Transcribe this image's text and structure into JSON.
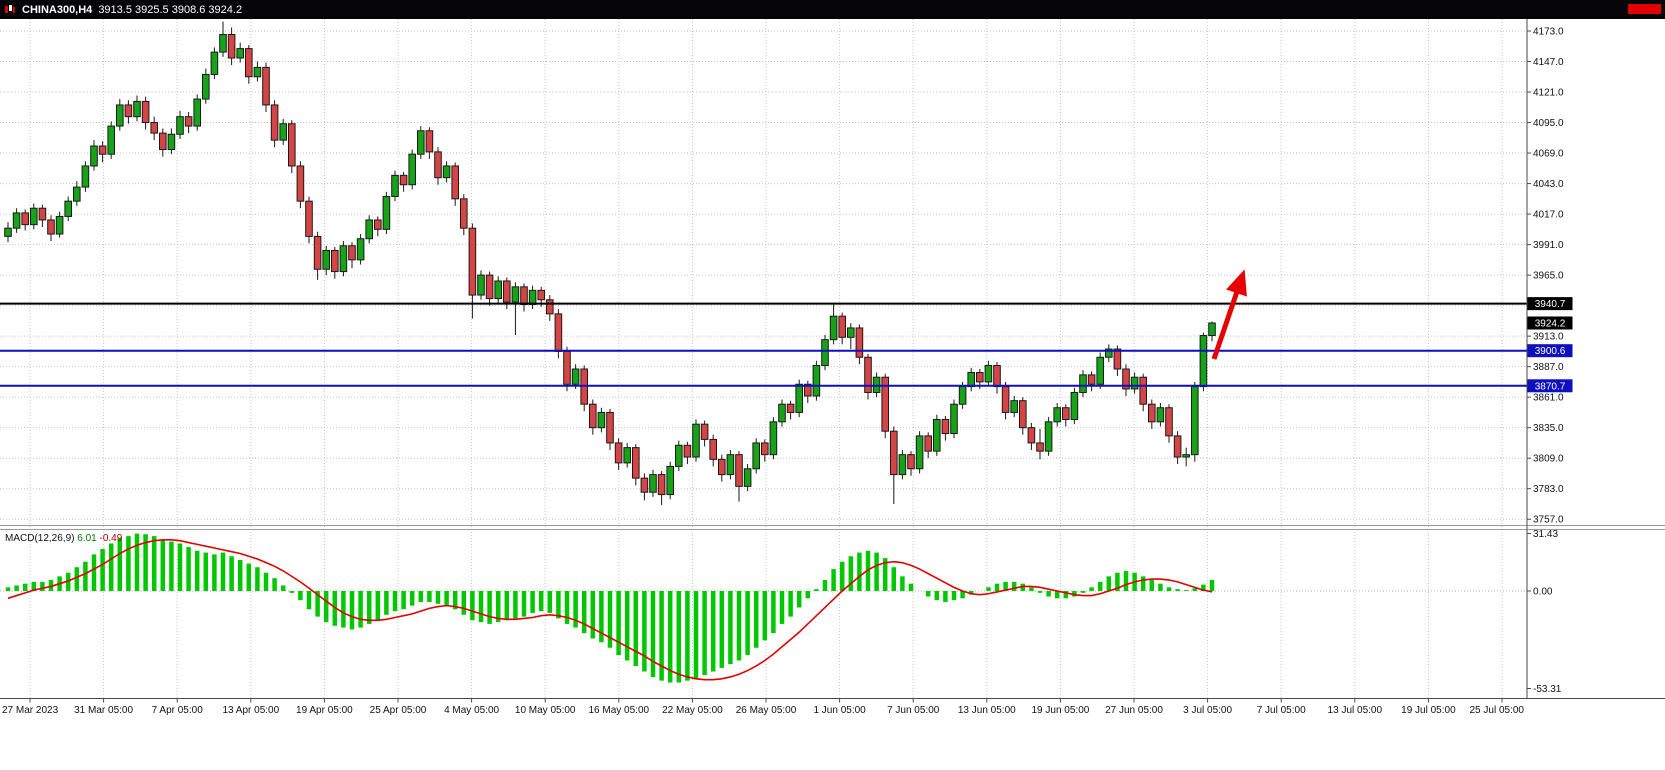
{
  "title_bar": {
    "symbol_period": "CHINA300,H4",
    "ohlc_readout": "3913.5 3925.5 3908.6 3924.2"
  },
  "indicator": {
    "name": "MACD(12,26,9)",
    "macd_value": "6.01",
    "signal_value": "-0.49"
  },
  "price_axis": {
    "labels": [
      "4173.0",
      "4147.0",
      "4121.0",
      "4095.0",
      "4069.0",
      "4043.0",
      "4017.0",
      "3991.0",
      "3965.0",
      "3913.0",
      "3887.0",
      "3861.0",
      "3835.0",
      "3809.0",
      "3783.0",
      "3757.0"
    ],
    "badges": [
      {
        "label": "3940.7",
        "price": 3940.7,
        "bg": "#000000"
      },
      {
        "label": "3924.2",
        "price": 3924.2,
        "bg": "#000000"
      },
      {
        "label": "3900.6",
        "price": 3900.6,
        "bg": "#0f0fbe"
      },
      {
        "label": "3870.7",
        "price": 3870.7,
        "bg": "#0f0fbe"
      }
    ]
  },
  "macd_axis": {
    "labels": [
      {
        "text": "31.43",
        "value": 31.43
      },
      {
        "text": "0.00",
        "value": 0
      },
      {
        "text": "-53.31",
        "value": -53.31
      }
    ]
  },
  "time_axis": {
    "labels": [
      "27 Mar 2023",
      "31 Mar 05:00",
      "7 Apr 05:00",
      "13 Apr 05:00",
      "19 Apr 05:00",
      "25 Apr 05:00",
      "4 May 05:00",
      "10 May 05:00",
      "16 May 05:00",
      "22 May 05:00",
      "26 May 05:00",
      "1 Jun 05:00",
      "7 Jun 05:00",
      "13 Jun 05:00",
      "19 Jun 05:00",
      "27 Jun 05:00",
      "3 Jul 05:00",
      "7 Jul 05:00",
      "13 Jul 05:00",
      "19 Jul 05:00",
      "25 Jul 05:00"
    ]
  },
  "colors": {
    "bull": "#17a317",
    "bear": "#d64545",
    "outline": "#1a1a1a",
    "macd_hist": "#00c800",
    "macd_signal": "#e00000",
    "level_black": "#000000",
    "level_blue": "#0f0fbe",
    "arrow": "#e80000",
    "grid": "#c6c6c6",
    "badge_text": "#ffffff"
  },
  "chart_data": {
    "type": "candlestick",
    "symbol": "CHINA300",
    "timeframe": "H4",
    "title": "CHINA300,H4",
    "last_candle": {
      "open": 3913.5,
      "high": 3925.5,
      "low": 3908.6,
      "close": 3924.2
    },
    "ylim": [
      3752,
      4184
    ],
    "price_gridlines": [
      4173,
      4147,
      4121,
      4095,
      4069,
      4043,
      4017,
      3991,
      3965,
      3939,
      3913,
      3887,
      3861,
      3835,
      3809,
      3783,
      3757
    ],
    "horizontal_lines": [
      {
        "price": 3940.7,
        "color": "#000000",
        "style": "solid",
        "width": 2,
        "role": "resistance"
      },
      {
        "price": 3900.6,
        "color": "#0f0fbe",
        "style": "solid",
        "width": 2,
        "role": "support"
      },
      {
        "price": 3870.7,
        "color": "#0f0fbe",
        "style": "solid",
        "width": 2,
        "role": "support"
      }
    ],
    "annotations": [
      {
        "type": "arrow",
        "direction": "up-right",
        "color": "#e80000"
      }
    ],
    "x_axis_labels": [
      "27 Mar 2023",
      "31 Mar 05:00",
      "7 Apr 05:00",
      "13 Apr 05:00",
      "19 Apr 05:00",
      "25 Apr 05:00",
      "4 May 05:00",
      "10 May 05:00",
      "16 May 05:00",
      "22 May 05:00",
      "26 May 05:00",
      "1 Jun 05:00",
      "7 Jun 05:00",
      "13 Jun 05:00",
      "19 Jun 05:00",
      "27 Jun 05:00",
      "3 Jul 05:00",
      "7 Jul 05:00",
      "13 Jul 05:00",
      "19 Jul 05:00",
      "25 Jul 05:00"
    ],
    "candles_ohlc": [
      [
        3998,
        4010,
        3993,
        4005
      ],
      [
        4005,
        4022,
        4001,
        4018
      ],
      [
        4018,
        4021,
        4003,
        4008
      ],
      [
        4008,
        4026,
        4004,
        4022
      ],
      [
        4022,
        4025,
        4006,
        4012
      ],
      [
        4012,
        4016,
        3994,
        4000
      ],
      [
        4000,
        4019,
        3997,
        4015
      ],
      [
        4015,
        4032,
        4011,
        4028
      ],
      [
        4028,
        4045,
        4024,
        4040
      ],
      [
        4040,
        4062,
        4036,
        4058
      ],
      [
        4058,
        4080,
        4054,
        4075
      ],
      [
        4075,
        4079,
        4061,
        4068
      ],
      [
        4068,
        4096,
        4064,
        4092
      ],
      [
        4092,
        4115,
        4088,
        4110
      ],
      [
        4110,
        4114,
        4094,
        4100
      ],
      [
        4100,
        4118,
        4096,
        4113
      ],
      [
        4113,
        4117,
        4089,
        4095
      ],
      [
        4095,
        4100,
        4080,
        4086
      ],
      [
        4086,
        4090,
        4066,
        4072
      ],
      [
        4072,
        4090,
        4068,
        4085
      ],
      [
        4085,
        4105,
        4081,
        4100
      ],
      [
        4100,
        4104,
        4086,
        4092
      ],
      [
        4092,
        4119,
        4088,
        4115
      ],
      [
        4115,
        4141,
        4111,
        4136
      ],
      [
        4136,
        4159,
        4132,
        4155
      ],
      [
        4155,
        4181,
        4151,
        4170
      ],
      [
        4170,
        4176,
        4144,
        4150
      ],
      [
        4150,
        4163,
        4146,
        4158
      ],
      [
        4158,
        4161,
        4128,
        4134
      ],
      [
        4134,
        4147,
        4130,
        4142
      ],
      [
        4142,
        4146,
        4104,
        4110
      ],
      [
        4110,
        4114,
        4074,
        4080
      ],
      [
        4080,
        4098,
        4076,
        4094
      ],
      [
        4094,
        4097,
        4052,
        4058
      ],
      [
        4058,
        4062,
        4022,
        4028
      ],
      [
        4028,
        4032,
        3992,
        3998
      ],
      [
        3998,
        4002,
        3961,
        3970
      ],
      [
        3970,
        3990,
        3965,
        3986
      ],
      [
        3986,
        3989,
        3962,
        3968
      ],
      [
        3968,
        3994,
        3964,
        3990
      ],
      [
        3990,
        3993,
        3971,
        3978
      ],
      [
        3978,
        4000,
        3974,
        3996
      ],
      [
        3996,
        4016,
        3992,
        4012
      ],
      [
        4012,
        4015,
        3998,
        4004
      ],
      [
        4004,
        4036,
        4000,
        4032
      ],
      [
        4032,
        4054,
        4028,
        4050
      ],
      [
        4050,
        4053,
        4036,
        4042
      ],
      [
        4042,
        4072,
        4038,
        4068
      ],
      [
        4068,
        4092,
        4064,
        4088
      ],
      [
        4088,
        4091,
        4064,
        4070
      ],
      [
        4070,
        4074,
        4042,
        4048
      ],
      [
        4048,
        4062,
        4044,
        4058
      ],
      [
        4058,
        4061,
        4024,
        4030
      ],
      [
        4030,
        4034,
        3999,
        4005
      ],
      [
        4005,
        4009,
        3928,
        3948
      ],
      [
        3948,
        3969,
        3944,
        3965
      ],
      [
        3965,
        3968,
        3939,
        3945
      ],
      [
        3945,
        3964,
        3941,
        3960
      ],
      [
        3960,
        3963,
        3936,
        3942
      ],
      [
        3942,
        3959,
        3914,
        3955
      ],
      [
        3955,
        3958,
        3934,
        3940
      ],
      [
        3940,
        3956,
        3936,
        3952
      ],
      [
        3952,
        3955,
        3938,
        3944
      ],
      [
        3944,
        3948,
        3926,
        3932
      ],
      [
        3932,
        3936,
        3894,
        3900
      ],
      [
        3900,
        3904,
        3866,
        3872
      ],
      [
        3872,
        3889,
        3868,
        3885
      ],
      [
        3885,
        3888,
        3849,
        3855
      ],
      [
        3855,
        3859,
        3829,
        3835
      ],
      [
        3835,
        3852,
        3831,
        3848
      ],
      [
        3848,
        3851,
        3816,
        3822
      ],
      [
        3822,
        3826,
        3799,
        3805
      ],
      [
        3805,
        3822,
        3801,
        3818
      ],
      [
        3818,
        3821,
        3786,
        3792
      ],
      [
        3792,
        3796,
        3773,
        3780
      ],
      [
        3780,
        3799,
        3776,
        3795
      ],
      [
        3795,
        3798,
        3769,
        3778
      ],
      [
        3778,
        3806,
        3774,
        3802
      ],
      [
        3802,
        3824,
        3798,
        3820
      ],
      [
        3820,
        3823,
        3804,
        3810
      ],
      [
        3810,
        3842,
        3806,
        3838
      ],
      [
        3838,
        3841,
        3819,
        3825
      ],
      [
        3825,
        3829,
        3802,
        3808
      ],
      [
        3808,
        3812,
        3789,
        3795
      ],
      [
        3795,
        3816,
        3791,
        3812
      ],
      [
        3812,
        3815,
        3772,
        3785
      ],
      [
        3785,
        3804,
        3781,
        3800
      ],
      [
        3800,
        3826,
        3796,
        3822
      ],
      [
        3822,
        3825,
        3806,
        3812
      ],
      [
        3812,
        3844,
        3808,
        3840
      ],
      [
        3840,
        3859,
        3836,
        3855
      ],
      [
        3855,
        3858,
        3842,
        3848
      ],
      [
        3848,
        3876,
        3844,
        3872
      ],
      [
        3872,
        3875,
        3856,
        3862
      ],
      [
        3862,
        3892,
        3858,
        3888
      ],
      [
        3888,
        3914,
        3884,
        3910
      ],
      [
        3910,
        3941,
        3906,
        3930
      ],
      [
        3930,
        3933,
        3906,
        3912
      ],
      [
        3912,
        3924,
        3902,
        3920
      ],
      [
        3920,
        3923,
        3889,
        3895
      ],
      [
        3895,
        3898,
        3859,
        3865
      ],
      [
        3865,
        3882,
        3861,
        3878
      ],
      [
        3878,
        3881,
        3826,
        3832
      ],
      [
        3832,
        3836,
        3770,
        3795
      ],
      [
        3795,
        3816,
        3791,
        3812
      ],
      [
        3812,
        3815,
        3794,
        3800
      ],
      [
        3800,
        3832,
        3796,
        3828
      ],
      [
        3828,
        3831,
        3809,
        3815
      ],
      [
        3815,
        3846,
        3811,
        3842
      ],
      [
        3842,
        3845,
        3824,
        3830
      ],
      [
        3830,
        3859,
        3826,
        3855
      ],
      [
        3855,
        3874,
        3851,
        3870
      ],
      [
        3870,
        3886,
        3866,
        3882
      ],
      [
        3882,
        3885,
        3868,
        3874
      ],
      [
        3874,
        3892,
        3870,
        3888
      ],
      [
        3888,
        3891,
        3864,
        3870
      ],
      [
        3870,
        3874,
        3842,
        3848
      ],
      [
        3848,
        3862,
        3844,
        3858
      ],
      [
        3858,
        3861,
        3829,
        3835
      ],
      [
        3835,
        3839,
        3816,
        3822
      ],
      [
        3822,
        3834,
        3808,
        3815
      ],
      [
        3815,
        3844,
        3811,
        3840
      ],
      [
        3840,
        3856,
        3836,
        3852
      ],
      [
        3852,
        3855,
        3836,
        3842
      ],
      [
        3842,
        3869,
        3838,
        3865
      ],
      [
        3865,
        3884,
        3861,
        3880
      ],
      [
        3880,
        3883,
        3866,
        3872
      ],
      [
        3872,
        3899,
        3868,
        3895
      ],
      [
        3895,
        3906,
        3891,
        3902
      ],
      [
        3902,
        3905,
        3879,
        3885
      ],
      [
        3885,
        3889,
        3862,
        3868
      ],
      [
        3868,
        3882,
        3864,
        3878
      ],
      [
        3878,
        3881,
        3849,
        3855
      ],
      [
        3855,
        3859,
        3834,
        3840
      ],
      [
        3840,
        3856,
        3836,
        3852
      ],
      [
        3852,
        3855,
        3822,
        3828
      ],
      [
        3828,
        3832,
        3804,
        3810
      ],
      [
        3810,
        3818,
        3802,
        3812
      ],
      [
        3812,
        3874,
        3806,
        3870
      ],
      [
        3870,
        3916,
        3866,
        3913.5
      ],
      [
        3913.5,
        3925.5,
        3908.6,
        3924.2
      ]
    ],
    "macd": {
      "label": "MACD(12,26,9)",
      "current_macd": 6.01,
      "current_signal": -0.49,
      "ylim": [
        -53.31,
        31.43
      ],
      "histogram": [
        2,
        3,
        4,
        5,
        5,
        6,
        8,
        10,
        13,
        16,
        20,
        23,
        26,
        29,
        30,
        31.4,
        31,
        30,
        28,
        27,
        26,
        24,
        22,
        21,
        20,
        21,
        19,
        17,
        15,
        13,
        10,
        7,
        3,
        -1,
        -5,
        -10,
        -14,
        -17,
        -19,
        -20,
        -21,
        -20,
        -18,
        -16,
        -13,
        -11,
        -10,
        -8,
        -6,
        -6,
        -7,
        -8,
        -10,
        -13,
        -16,
        -17,
        -18,
        -17,
        -16,
        -15,
        -14,
        -12,
        -11,
        -12,
        -15,
        -18,
        -20,
        -23,
        -26,
        -28,
        -31,
        -35,
        -38,
        -41,
        -44,
        -47,
        -49,
        -50,
        -50,
        -49,
        -48,
        -46,
        -44,
        -42,
        -40,
        -38,
        -35,
        -31,
        -27,
        -23,
        -18,
        -14,
        -9,
        -4,
        1,
        6,
        12,
        16,
        19,
        21,
        22,
        21,
        18,
        13,
        8,
        4,
        0,
        -3,
        -5,
        -6,
        -5,
        -4,
        -2,
        0,
        2,
        4,
        5,
        5,
        4,
        2,
        -1,
        -3,
        -4,
        -4,
        -3,
        -1,
        2,
        5,
        8,
        10,
        11,
        10,
        8,
        6,
        4,
        2,
        1,
        0.5,
        1.5,
        3.5,
        6.01
      ],
      "signal": [
        -4,
        -2.5,
        -1,
        0.5,
        1.5,
        2.5,
        4,
        5.5,
        7.5,
        9.5,
        12,
        14.5,
        17.5,
        20.5,
        23,
        25,
        26.5,
        27.5,
        28,
        28,
        27.5,
        26.5,
        25.5,
        24.5,
        23.5,
        22.5,
        21.5,
        20.5,
        19,
        17.5,
        15.5,
        13.5,
        11,
        8,
        5,
        1.5,
        -2,
        -5.5,
        -9,
        -12,
        -14,
        -15.5,
        -16,
        -16,
        -15.5,
        -14.5,
        -13.5,
        -12.5,
        -11,
        -9.5,
        -8.5,
        -8,
        -8.5,
        -9.5,
        -11,
        -12.5,
        -14,
        -15,
        -15.5,
        -15.5,
        -15,
        -14.5,
        -13.5,
        -13,
        -13.5,
        -14.5,
        -16,
        -18,
        -20.5,
        -23,
        -25.5,
        -28,
        -30.5,
        -33,
        -35.5,
        -38.5,
        -41,
        -43.5,
        -45.5,
        -47,
        -48,
        -48.5,
        -48.5,
        -48,
        -47,
        -45.5,
        -43.5,
        -41,
        -38,
        -34.5,
        -30.5,
        -26.5,
        -22.5,
        -18,
        -13.5,
        -9,
        -4.5,
        0,
        4,
        8,
        11.5,
        14,
        15.5,
        16,
        15.5,
        14,
        12,
        9.5,
        7,
        4.5,
        2,
        0,
        -1.5,
        -2,
        -1.5,
        -0.5,
        0.5,
        1.5,
        2.5,
        2.5,
        2,
        1,
        0,
        -1,
        -2,
        -2.5,
        -2.5,
        -1.5,
        0,
        1.5,
        3.5,
        5,
        6,
        6.5,
        6.5,
        6,
        5,
        3.5,
        2,
        0.5,
        -0.49
      ]
    }
  }
}
